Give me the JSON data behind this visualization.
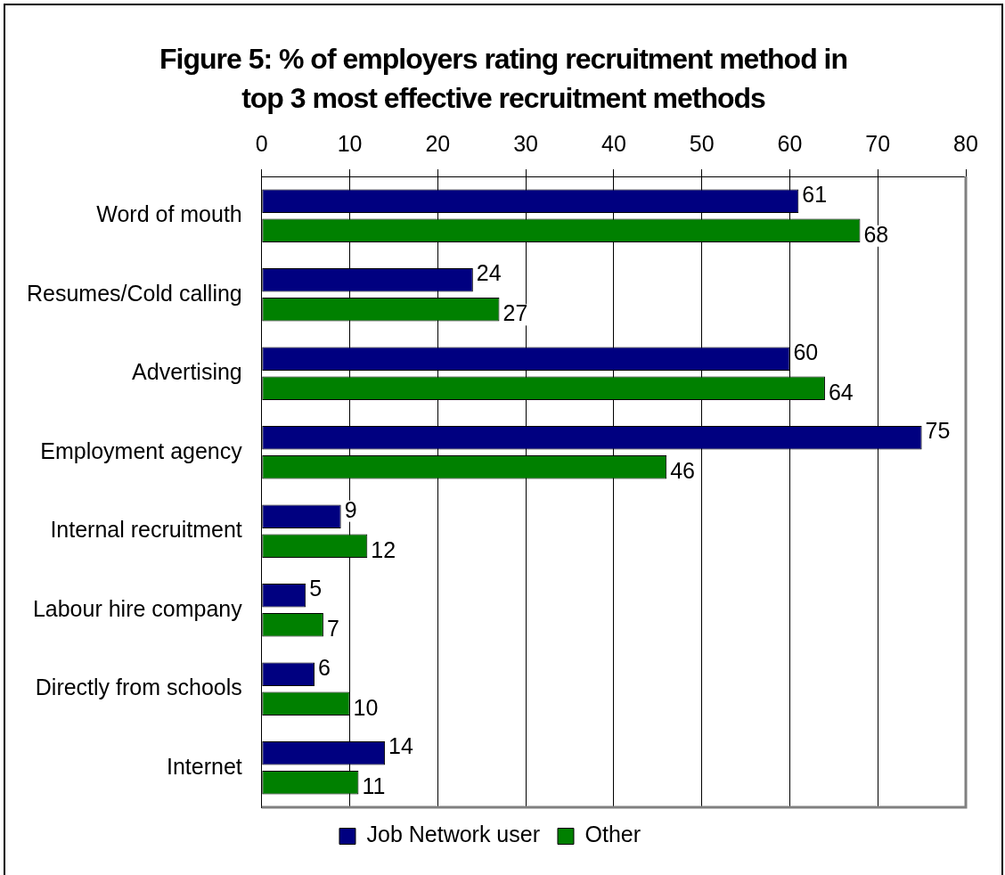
{
  "chart_data": {
    "type": "bar",
    "orientation": "horizontal",
    "title": "Figure 5: % of employers rating recruitment method in top 3 most effective recruitment methods",
    "categories": [
      "Word of mouth",
      "Resumes/Cold calling",
      "Advertising",
      "Employment agency",
      "Internal recruitment",
      "Labour hire company",
      "Directly from schools",
      "Internet"
    ],
    "series": [
      {
        "name": "Job Network user",
        "color": "#000080",
        "values": [
          61,
          24,
          60,
          75,
          9,
          5,
          6,
          14
        ]
      },
      {
        "name": "Other",
        "color": "#008000",
        "values": [
          68,
          27,
          64,
          46,
          12,
          7,
          10,
          11
        ]
      }
    ],
    "xlim": [
      0,
      80
    ],
    "xticks": [
      0,
      10,
      20,
      30,
      40,
      50,
      60,
      70,
      80
    ],
    "grid": "x",
    "legend": "bottom",
    "data_labels": true
  }
}
